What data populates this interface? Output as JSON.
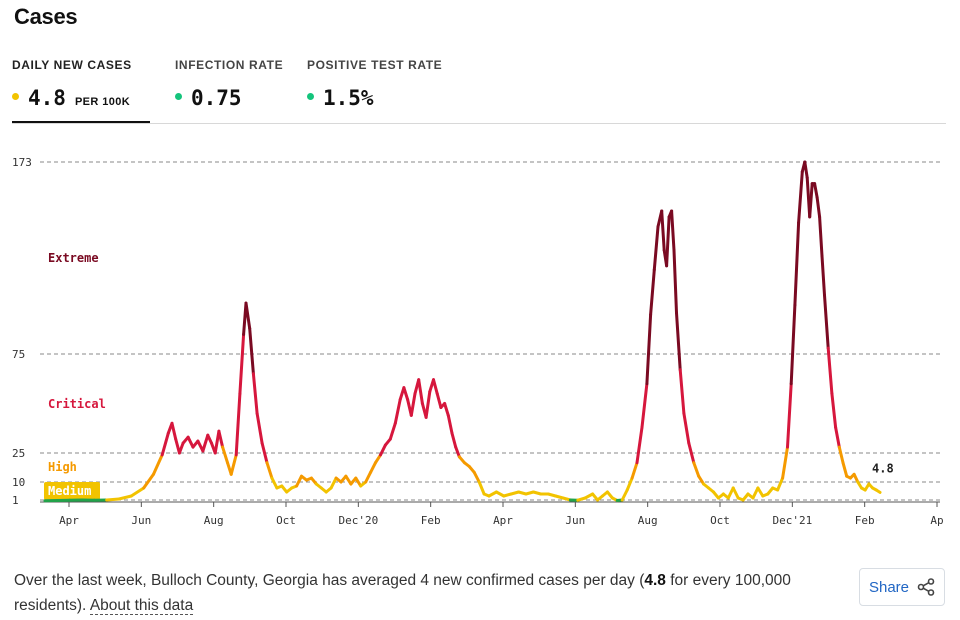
{
  "page": {
    "title": "Cases"
  },
  "tabs": [
    {
      "label": "DAILY NEW CASES",
      "value": "4.8",
      "unit": "PER 100K",
      "dot_color": "#f2c300",
      "active": true
    },
    {
      "label": "INFECTION RATE",
      "value": "0.75",
      "dot_color": "#14c47c",
      "active": false
    },
    {
      "label": "POSITIVE TEST RATE",
      "value": "1.5%",
      "dot_color": "#14c47c",
      "active": false
    }
  ],
  "chart_data": {
    "type": "line",
    "y_ticks": [
      "173",
      "75",
      "25",
      "10",
      "1"
    ],
    "ylim": [
      0,
      173
    ],
    "x_labels": [
      "Apr",
      "Jun",
      "Aug",
      "Oct",
      "Dec'20",
      "Feb",
      "Apr",
      "Jun",
      "Aug",
      "Oct",
      "Dec'21",
      "Feb",
      "Ap"
    ],
    "zones": [
      {
        "label": "Extreme",
        "min": 75,
        "color": "#7a0a22"
      },
      {
        "label": "Critical",
        "min": 25,
        "color": "#d6173d"
      },
      {
        "label": "High",
        "min": 10,
        "color": "#f59a00"
      },
      {
        "label": "Medium",
        "min": 1,
        "color": "#f2c300"
      },
      {
        "label": "",
        "min": 0,
        "color": "#22a34a"
      }
    ],
    "last_value_label": "4.8",
    "series": [
      {
        "values": [
          [
            0,
            0.3
          ],
          [
            10,
            0.5
          ],
          [
            20,
            0.8
          ],
          [
            30,
            1
          ],
          [
            40,
            0.8
          ],
          [
            50,
            1
          ],
          [
            60,
            1.5
          ],
          [
            70,
            3
          ],
          [
            80,
            7
          ],
          [
            88,
            14
          ],
          [
            95,
            24
          ],
          [
            100,
            35
          ],
          [
            103,
            40
          ],
          [
            106,
            32
          ],
          [
            109,
            25
          ],
          [
            112,
            30
          ],
          [
            116,
            33
          ],
          [
            120,
            28
          ],
          [
            124,
            31
          ],
          [
            128,
            26
          ],
          [
            132,
            34
          ],
          [
            135,
            30
          ],
          [
            138,
            25
          ],
          [
            141,
            36
          ],
          [
            144,
            28
          ],
          [
            148,
            20
          ],
          [
            151,
            14
          ],
          [
            155,
            24
          ],
          [
            158,
            55
          ],
          [
            161,
            85
          ],
          [
            163,
            101
          ],
          [
            166,
            88
          ],
          [
            169,
            65
          ],
          [
            172,
            45
          ],
          [
            176,
            30
          ],
          [
            180,
            20
          ],
          [
            184,
            12
          ],
          [
            188,
            7
          ],
          [
            192,
            8
          ],
          [
            196,
            5
          ],
          [
            200,
            7
          ],
          [
            204,
            8
          ],
          [
            208,
            13
          ],
          [
            212,
            11
          ],
          [
            216,
            12
          ],
          [
            220,
            9
          ],
          [
            224,
            7
          ],
          [
            228,
            5
          ],
          [
            232,
            7
          ],
          [
            236,
            12
          ],
          [
            240,
            10
          ],
          [
            244,
            13
          ],
          [
            248,
            9
          ],
          [
            252,
            12
          ],
          [
            256,
            8
          ],
          [
            260,
            10
          ],
          [
            264,
            15
          ],
          [
            268,
            20
          ],
          [
            272,
            24
          ],
          [
            276,
            29
          ],
          [
            280,
            32
          ],
          [
            284,
            40
          ],
          [
            288,
            52
          ],
          [
            291,
            58
          ],
          [
            294,
            52
          ],
          [
            297,
            44
          ],
          [
            300,
            55
          ],
          [
            303,
            62
          ],
          [
            306,
            50
          ],
          [
            309,
            43
          ],
          [
            312,
            56
          ],
          [
            315,
            62
          ],
          [
            318,
            55
          ],
          [
            321,
            48
          ],
          [
            324,
            50
          ],
          [
            327,
            44
          ],
          [
            330,
            35
          ],
          [
            333,
            28
          ],
          [
            336,
            23
          ],
          [
            340,
            20
          ],
          [
            344,
            18
          ],
          [
            348,
            15
          ],
          [
            352,
            10
          ],
          [
            356,
            4
          ],
          [
            360,
            3
          ],
          [
            366,
            5
          ],
          [
            372,
            3
          ],
          [
            378,
            4
          ],
          [
            384,
            5
          ],
          [
            390,
            4
          ],
          [
            396,
            5
          ],
          [
            402,
            4
          ],
          [
            408,
            4
          ],
          [
            414,
            3
          ],
          [
            420,
            2
          ],
          [
            426,
            1
          ],
          [
            432,
            0.8
          ],
          [
            438,
            2
          ],
          [
            444,
            4
          ],
          [
            448,
            1
          ],
          [
            452,
            3
          ],
          [
            456,
            5
          ],
          [
            460,
            2
          ],
          [
            464,
            0.5
          ],
          [
            468,
            1
          ],
          [
            472,
            6
          ],
          [
            476,
            12
          ],
          [
            480,
            20
          ],
          [
            484,
            38
          ],
          [
            488,
            60
          ],
          [
            491,
            95
          ],
          [
            494,
            118
          ],
          [
            497,
            140
          ],
          [
            500,
            148
          ],
          [
            502,
            128
          ],
          [
            504,
            120
          ],
          [
            506,
            145
          ],
          [
            508,
            148
          ],
          [
            510,
            128
          ],
          [
            512,
            96
          ],
          [
            515,
            67
          ],
          [
            518,
            45
          ],
          [
            522,
            30
          ],
          [
            526,
            20
          ],
          [
            530,
            13
          ],
          [
            534,
            9
          ],
          [
            538,
            7
          ],
          [
            542,
            5
          ],
          [
            546,
            2
          ],
          [
            550,
            4
          ],
          [
            554,
            2
          ],
          [
            558,
            7
          ],
          [
            562,
            2
          ],
          [
            566,
            1
          ],
          [
            570,
            4
          ],
          [
            574,
            2
          ],
          [
            578,
            7
          ],
          [
            582,
            3
          ],
          [
            586,
            4
          ],
          [
            590,
            7
          ],
          [
            594,
            6
          ],
          [
            598,
            12
          ],
          [
            602,
            28
          ],
          [
            605,
            60
          ],
          [
            608,
            100
          ],
          [
            611,
            142
          ],
          [
            614,
            168
          ],
          [
            616,
            173
          ],
          [
            618,
            165
          ],
          [
            620,
            145
          ],
          [
            622,
            162
          ],
          [
            624,
            162
          ],
          [
            626,
            155
          ],
          [
            628,
            145
          ],
          [
            630,
            125
          ],
          [
            632,
            105
          ],
          [
            635,
            78
          ],
          [
            638,
            55
          ],
          [
            641,
            38
          ],
          [
            644,
            28
          ],
          [
            647,
            20
          ],
          [
            650,
            13
          ],
          [
            653,
            12
          ],
          [
            656,
            14
          ],
          [
            659,
            10
          ],
          [
            662,
            7
          ],
          [
            665,
            6
          ],
          [
            668,
            9
          ],
          [
            671,
            7
          ],
          [
            674,
            6
          ],
          [
            677,
            4.8
          ]
        ]
      }
    ]
  },
  "footer": {
    "text_before": "Over the last week, Bulloch County, Georgia has averaged 4 new confirmed cases per day (",
    "bold_value": "4.8",
    "text_after": " for every 100,000 residents). ",
    "link": "About this data"
  },
  "share": {
    "label": "Share",
    "icon": "share-icon"
  }
}
